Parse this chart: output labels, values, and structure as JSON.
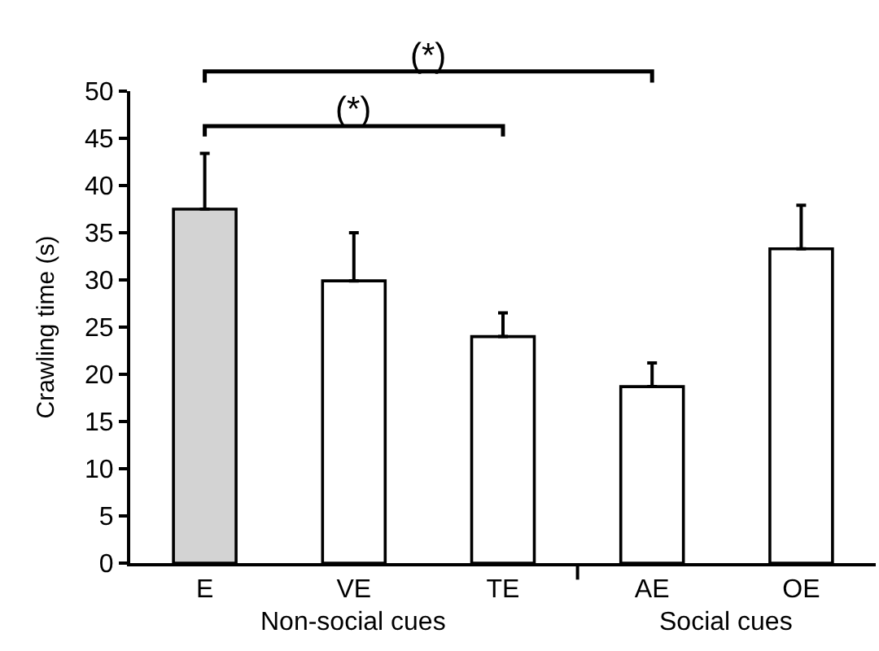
{
  "chart_data": {
    "type": "bar",
    "ylabel": "Crawling time (s)",
    "categories": [
      "E",
      "VE",
      "TE",
      "AE",
      "OE"
    ],
    "values": [
      37.5,
      29.9,
      24.0,
      18.7,
      33.3
    ],
    "colors": [
      "#d3d3d3",
      "#ffffff",
      "#ffffff",
      "#ffffff",
      "#ffffff"
    ],
    "errors": [
      [
        37.5,
        43.4
      ],
      [
        29.9,
        35.0
      ],
      [
        24.0,
        26.5
      ],
      [
        18.7,
        21.2
      ],
      [
        33.3,
        37.9
      ]
    ],
    "ylim": [
      0,
      50
    ],
    "yticks": [
      0,
      5,
      10,
      15,
      20,
      25,
      30,
      35,
      40,
      45,
      50
    ],
    "annotations": [
      "(*)",
      "(*)",
      "Non-social cues",
      "Social cues"
    ]
  }
}
